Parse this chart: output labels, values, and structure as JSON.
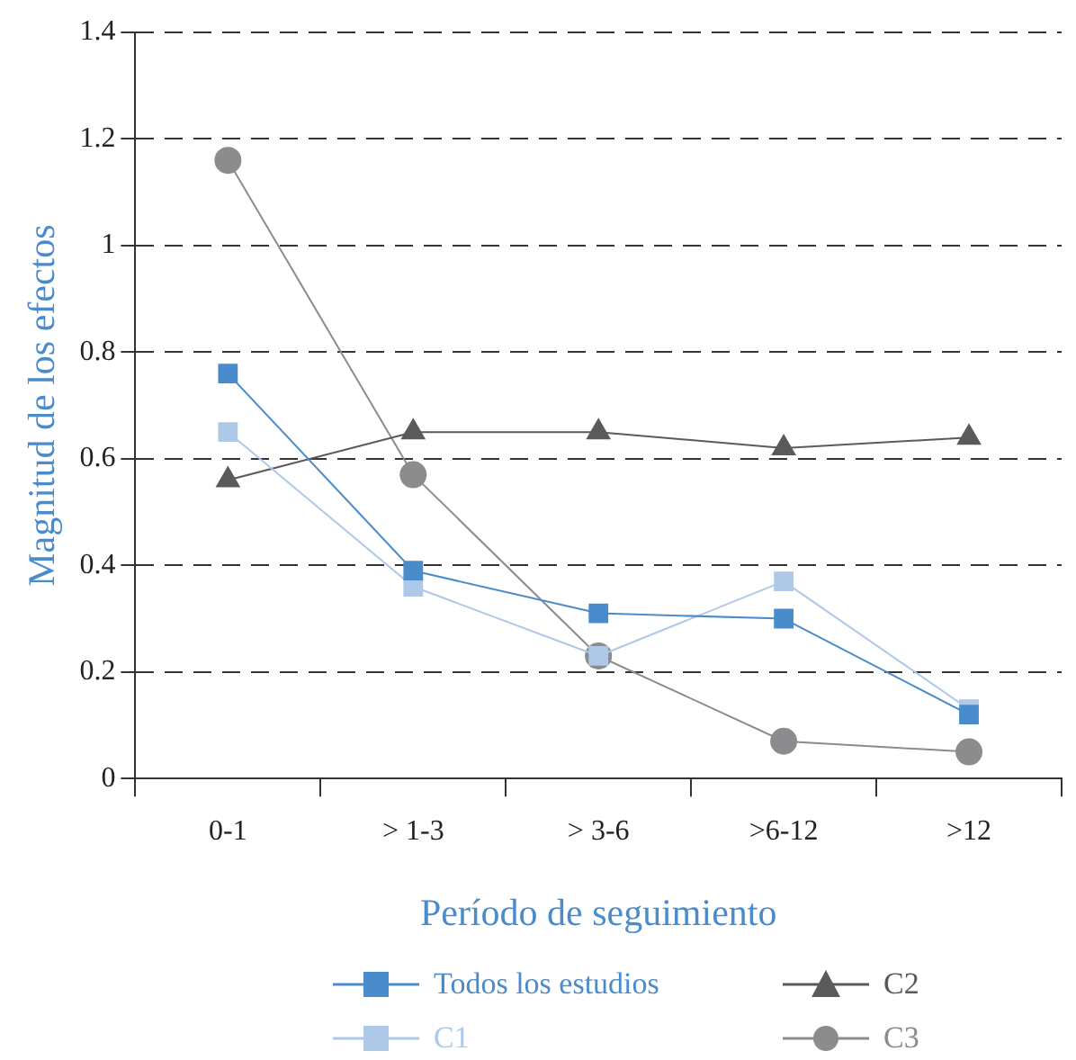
{
  "chart_data": {
    "type": "line",
    "xlabel": "Período de seguimiento",
    "ylabel": "Magnitud de los efectos",
    "categories": [
      "0-1",
      "> 1-3",
      "> 3-6",
      ">6-12",
      ">12"
    ],
    "series": [
      {
        "name": "Todos los estudios",
        "color": "#4a8ccb",
        "marker": "square",
        "values": [
          0.76,
          0.39,
          0.31,
          0.3,
          0.12
        ]
      },
      {
        "name": "C1",
        "color": "#aec8e8",
        "marker": "square",
        "values": [
          0.65,
          0.36,
          0.23,
          0.37,
          0.13
        ]
      },
      {
        "name": "C2",
        "color": "#5a5a5a",
        "marker": "triangle",
        "values": [
          0.56,
          0.65,
          0.65,
          0.62,
          0.64
        ]
      },
      {
        "name": "C3",
        "color": "#8c8c8e",
        "marker": "circle",
        "values": [
          1.16,
          0.57,
          0.23,
          0.07,
          0.05
        ]
      }
    ],
    "ylim": [
      0,
      1.4
    ],
    "yticks": [
      0,
      0.2,
      0.4,
      0.6,
      0.8,
      1,
      1.2,
      1.4
    ],
    "grid": "y",
    "line_style": "solid",
    "legend": "bottom"
  }
}
